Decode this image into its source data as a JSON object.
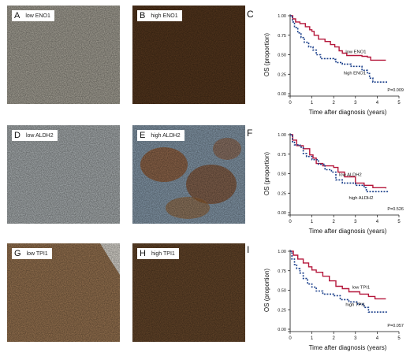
{
  "colors": {
    "low": "#b5173b",
    "high": "#1a3f8a"
  },
  "images": [
    {
      "letter": "A",
      "label": "low ENO1",
      "stain": "light-brown"
    },
    {
      "letter": "B",
      "label": "high ENO1",
      "stain": "dark-brown"
    },
    {
      "letter": "D",
      "label": "low ALDH2",
      "stain": "blue"
    },
    {
      "letter": "E",
      "label": "high ALDH2",
      "stain": "blue-brown"
    },
    {
      "letter": "G",
      "label": "low TPI1",
      "stain": "medium-brown"
    },
    {
      "letter": "H",
      "label": "high TPI1",
      "stain": "dark-brown"
    }
  ],
  "chart_data": [
    {
      "type": "line",
      "panel": "C",
      "ylabel": "OS (proportion)",
      "xlabel": "Time after diagnosis (years)",
      "ylim": [
        0,
        1
      ],
      "xlim": [
        0,
        5
      ],
      "yticks": [
        "0.00",
        "0.25",
        "0.50",
        "0.75",
        "1.00"
      ],
      "xticks": [
        "0",
        "1",
        "2",
        "3",
        "4",
        "5"
      ],
      "pvalue": "P=0.009",
      "series": [
        {
          "name": "low ENO1",
          "key": "low",
          "points": [
            [
              0,
              1
            ],
            [
              0.12,
              0.96
            ],
            [
              0.25,
              0.92
            ],
            [
              0.45,
              0.9
            ],
            [
              0.7,
              0.86
            ],
            [
              0.9,
              0.82
            ],
            [
              1.0,
              0.8
            ],
            [
              1.1,
              0.75
            ],
            [
              1.3,
              0.7
            ],
            [
              1.6,
              0.67
            ],
            [
              1.85,
              0.63
            ],
            [
              2.05,
              0.6
            ],
            [
              2.25,
              0.55
            ],
            [
              2.4,
              0.52
            ],
            [
              2.6,
              0.49
            ],
            [
              3.3,
              0.48
            ],
            [
              3.55,
              0.47
            ],
            [
              3.7,
              0.43
            ],
            [
              4.4,
              0.43
            ]
          ]
        },
        {
          "name": "high ENO1",
          "key": "high",
          "points": [
            [
              0,
              1
            ],
            [
              0.1,
              0.92
            ],
            [
              0.2,
              0.85
            ],
            [
              0.35,
              0.78
            ],
            [
              0.5,
              0.72
            ],
            [
              0.65,
              0.66
            ],
            [
              0.85,
              0.6
            ],
            [
              1.05,
              0.56
            ],
            [
              1.2,
              0.5
            ],
            [
              1.4,
              0.45
            ],
            [
              2.0,
              0.44
            ],
            [
              2.1,
              0.4
            ],
            [
              2.4,
              0.38
            ],
            [
              2.8,
              0.35
            ],
            [
              3.3,
              0.3
            ],
            [
              3.55,
              0.26
            ],
            [
              3.65,
              0.2
            ],
            [
              3.8,
              0.15
            ],
            [
              4.5,
              0.15
            ]
          ]
        }
      ]
    },
    {
      "type": "line",
      "panel": "F",
      "ylabel": "OS (proportion)",
      "xlabel": "Time after diagnosis (years)",
      "ylim": [
        0,
        1
      ],
      "xlim": [
        0,
        5
      ],
      "yticks": [
        "0.00",
        "0.25",
        "0.50",
        "0.75",
        "1.00"
      ],
      "xticks": [
        "0",
        "1",
        "2",
        "3",
        "4",
        "5"
      ],
      "pvalue": "P=0.526",
      "series": [
        {
          "name": "low ALDH2",
          "key": "low",
          "points": [
            [
              0,
              1
            ],
            [
              0.12,
              0.93
            ],
            [
              0.3,
              0.86
            ],
            [
              0.6,
              0.82
            ],
            [
              0.9,
              0.74
            ],
            [
              1.05,
              0.7
            ],
            [
              1.2,
              0.63
            ],
            [
              1.5,
              0.6
            ],
            [
              2.0,
              0.58
            ],
            [
              2.2,
              0.52
            ],
            [
              2.5,
              0.46
            ],
            [
              3.0,
              0.38
            ],
            [
              3.4,
              0.35
            ],
            [
              3.8,
              0.32
            ],
            [
              4.4,
              0.31
            ]
          ]
        },
        {
          "name": "high ALDH2",
          "key": "high",
          "points": [
            [
              0,
              1
            ],
            [
              0.1,
              0.91
            ],
            [
              0.2,
              0.87
            ],
            [
              0.45,
              0.84
            ],
            [
              0.6,
              0.76
            ],
            [
              0.75,
              0.72
            ],
            [
              1.0,
              0.68
            ],
            [
              1.3,
              0.62
            ],
            [
              1.6,
              0.55
            ],
            [
              1.9,
              0.52
            ],
            [
              2.1,
              0.42
            ],
            [
              2.4,
              0.38
            ],
            [
              3.0,
              0.35
            ],
            [
              3.4,
              0.32
            ],
            [
              3.5,
              0.27
            ],
            [
              4.5,
              0.27
            ]
          ]
        }
      ]
    },
    {
      "type": "line",
      "panel": "I",
      "ylabel": "OS (proportion)",
      "xlabel": "Time after diagnosis (years)",
      "ylim": [
        0,
        1
      ],
      "xlim": [
        0,
        5
      ],
      "yticks": [
        "0.00",
        "0.25",
        "0.50",
        "0.75",
        "1.00"
      ],
      "xticks": [
        "0",
        "1",
        "2",
        "3",
        "4",
        "5"
      ],
      "pvalue": "P=0.057",
      "series": [
        {
          "name": "low TPI1",
          "key": "low",
          "points": [
            [
              0,
              1
            ],
            [
              0.15,
              0.95
            ],
            [
              0.35,
              0.9
            ],
            [
              0.6,
              0.85
            ],
            [
              0.85,
              0.8
            ],
            [
              1.0,
              0.76
            ],
            [
              1.2,
              0.73
            ],
            [
              1.5,
              0.68
            ],
            [
              1.8,
              0.62
            ],
            [
              2.1,
              0.55
            ],
            [
              2.4,
              0.52
            ],
            [
              2.7,
              0.48
            ],
            [
              3.2,
              0.45
            ],
            [
              3.6,
              0.42
            ],
            [
              3.9,
              0.39
            ],
            [
              4.4,
              0.39
            ]
          ]
        },
        {
          "name": "high TPI1",
          "key": "high",
          "points": [
            [
              0,
              1
            ],
            [
              0.08,
              0.9
            ],
            [
              0.2,
              0.83
            ],
            [
              0.3,
              0.78
            ],
            [
              0.45,
              0.72
            ],
            [
              0.6,
              0.65
            ],
            [
              0.8,
              0.58
            ],
            [
              1.0,
              0.54
            ],
            [
              1.2,
              0.49
            ],
            [
              1.5,
              0.45
            ],
            [
              2.0,
              0.43
            ],
            [
              2.3,
              0.38
            ],
            [
              2.7,
              0.35
            ],
            [
              3.1,
              0.32
            ],
            [
              3.4,
              0.28
            ],
            [
              3.6,
              0.22
            ],
            [
              4.5,
              0.22
            ]
          ]
        }
      ]
    }
  ]
}
